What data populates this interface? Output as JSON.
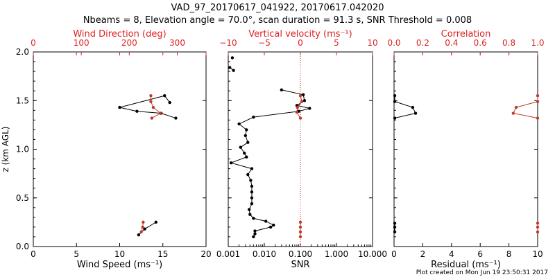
{
  "header": {
    "title": "VAD_97_20170617_041922, 20170617.042020",
    "subtitle": "Nbeams = 8, Elevation angle = 70.0°, scan duration = 91.3 s, SNR Threshold = 0.008"
  },
  "footer": {
    "created": "Plot created on Mon Jun 19 23:50:31 2017"
  },
  "colors": {
    "black": "#000000",
    "red": "#c0392b",
    "axis_red": "#dd2222"
  },
  "chart_data": [
    {
      "type": "line",
      "title": "",
      "xlabel": "Wind Speed (ms⁻¹)",
      "ylabel": "z (km AGL)",
      "xlim": [
        0,
        20
      ],
      "ylim": [
        0,
        2
      ],
      "xticks": [
        "0",
        "5",
        "10",
        "15",
        "20"
      ],
      "yticks": [
        "0.0",
        "0.5",
        "1.0",
        "1.5",
        "2.0"
      ],
      "top_axis": {
        "label": "Wind Direction (deg)",
        "lim": [
          0,
          360
        ],
        "ticks": [
          "0",
          "100",
          "200",
          "300"
        ]
      },
      "series": [
        {
          "name": "Wind Speed",
          "color": "#000000",
          "segments": [
            [
              {
                "x": 14.2,
                "y": 0.25
              },
              {
                "x": 12.9,
                "y": 0.18
              },
              {
                "x": 12.2,
                "y": 0.12
              }
            ],
            [
              {
                "x": 15.8,
                "y": 1.48
              },
              {
                "x": 15.2,
                "y": 1.55
              },
              {
                "x": 10.0,
                "y": 1.43
              },
              {
                "x": 12.0,
                "y": 1.39
              },
              {
                "x": 14.8,
                "y": 1.37
              },
              {
                "x": 16.5,
                "y": 1.32
              }
            ]
          ]
        },
        {
          "name": "Wind Direction",
          "color": "#c0392b",
          "axis": "top",
          "segments": [
            [
              {
                "x": 229,
                "y": 0.25
              },
              {
                "x": 228,
                "y": 0.2
              },
              {
                "x": 225,
                "y": 0.15
              }
            ],
            [
              {
                "x": 245,
                "y": 1.55
              },
              {
                "x": 245,
                "y": 1.49
              },
              {
                "x": 250,
                "y": 1.43
              },
              {
                "x": 265,
                "y": 1.37
              },
              {
                "x": 247,
                "y": 1.32
              }
            ]
          ]
        }
      ]
    },
    {
      "type": "line",
      "title": "",
      "xlabel": "SNR",
      "xscale": "log",
      "xlim": [
        0.001,
        10
      ],
      "ylim": [
        0,
        2
      ],
      "xticks": [
        "0.001",
        "0.010",
        "0.100",
        "1.000",
        "10.000"
      ],
      "top_axis": {
        "label": "Vertical velocity (ms⁻¹)",
        "lim": [
          -10,
          10
        ],
        "ticks": [
          "−10",
          "−5",
          "0",
          "5",
          "10"
        ]
      },
      "reference_line": {
        "x": 0.1,
        "style": "dotted",
        "color": "#dd2222"
      },
      "series": [
        {
          "name": "SNR",
          "color": "#000000",
          "segments": [
            [
              {
                "x": 0.0013,
                "y": 1.94
              }
            ],
            [
              {
                "x": 0.0011,
                "y": 1.84
              },
              {
                "x": 0.0014,
                "y": 1.81
              }
            ],
            [
              {
                "x": 0.03,
                "y": 1.61
              },
              {
                "x": 0.12,
                "y": 1.56
              },
              {
                "x": 0.13,
                "y": 1.5
              },
              {
                "x": 0.08,
                "y": 1.45
              },
              {
                "x": 0.18,
                "y": 1.42
              },
              {
                "x": 0.09,
                "y": 1.39
              },
              {
                "x": 0.005,
                "y": 1.33
              },
              {
                "x": 0.002,
                "y": 1.26
              },
              {
                "x": 0.0032,
                "y": 1.2
              },
              {
                "x": 0.003,
                "y": 1.14
              },
              {
                "x": 0.0035,
                "y": 1.07
              },
              {
                "x": 0.0022,
                "y": 1.02
              },
              {
                "x": 0.0028,
                "y": 0.96
              },
              {
                "x": 0.0032,
                "y": 0.92
              },
              {
                "x": 0.0012,
                "y": 0.86
              },
              {
                "x": 0.0045,
                "y": 0.8
              },
              {
                "x": 0.0035,
                "y": 0.74
              },
              {
                "x": 0.0042,
                "y": 0.68
              },
              {
                "x": 0.0045,
                "y": 0.62
              },
              {
                "x": 0.0045,
                "y": 0.56
              },
              {
                "x": 0.0045,
                "y": 0.5
              },
              {
                "x": 0.0045,
                "y": 0.44
              },
              {
                "x": 0.0038,
                "y": 0.38
              },
              {
                "x": 0.004,
                "y": 0.33
              },
              {
                "x": 0.005,
                "y": 0.29
              },
              {
                "x": 0.011,
                "y": 0.26
              },
              {
                "x": 0.018,
                "y": 0.22
              },
              {
                "x": 0.015,
                "y": 0.2
              },
              {
                "x": 0.0055,
                "y": 0.16
              },
              {
                "x": 0.0055,
                "y": 0.13
              },
              {
                "x": 0.005,
                "y": 0.1
              }
            ]
          ]
        },
        {
          "name": "Vertical velocity",
          "color": "#c0392b",
          "axis": "top",
          "segments": [
            [
              {
                "x": 0.0,
                "y": 0.25
              },
              {
                "x": 0.0,
                "y": 0.2
              },
              {
                "x": 0.0,
                "y": 0.15
              },
              {
                "x": 0.0,
                "y": 0.1
              }
            ],
            [
              {
                "x": 0.0,
                "y": 1.55
              },
              {
                "x": 0.2,
                "y": 1.49
              },
              {
                "x": -0.4,
                "y": 1.43
              },
              {
                "x": -0.5,
                "y": 1.38
              },
              {
                "x": 0.0,
                "y": 1.32
              }
            ]
          ]
        }
      ]
    },
    {
      "type": "line",
      "title": "",
      "xlabel": "Residual (ms⁻¹)",
      "xlim": [
        0,
        10
      ],
      "ylim": [
        0,
        2
      ],
      "xticks": [
        "0",
        "2",
        "4",
        "6",
        "8",
        "10"
      ],
      "top_axis": {
        "label": "Correlation",
        "lim": [
          0,
          1
        ],
        "ticks": [
          "0.0",
          "0.2",
          "0.4",
          "0.6",
          "0.8",
          "1.0"
        ]
      },
      "series": [
        {
          "name": "Residual",
          "color": "#000000",
          "segments": [
            [
              {
                "x": 0.05,
                "y": 0.24
              },
              {
                "x": 0.05,
                "y": 0.2
              },
              {
                "x": 0.05,
                "y": 0.15
              }
            ],
            [
              {
                "x": 0.05,
                "y": 1.55
              },
              {
                "x": 0.05,
                "y": 1.49
              },
              {
                "x": 1.3,
                "y": 1.43
              },
              {
                "x": 1.5,
                "y": 1.37
              },
              {
                "x": 0.05,
                "y": 1.32
              }
            ]
          ]
        },
        {
          "name": "Correlation",
          "color": "#c0392b",
          "axis": "top",
          "segments": [
            [
              {
                "x": 1.0,
                "y": 0.24
              },
              {
                "x": 1.0,
                "y": 0.2
              },
              {
                "x": 1.0,
                "y": 0.15
              }
            ],
            [
              {
                "x": 1.0,
                "y": 1.55
              },
              {
                "x": 1.0,
                "y": 1.49
              },
              {
                "x": 0.85,
                "y": 1.43
              },
              {
                "x": 0.83,
                "y": 1.37
              },
              {
                "x": 1.0,
                "y": 1.32
              }
            ]
          ]
        }
      ]
    }
  ]
}
